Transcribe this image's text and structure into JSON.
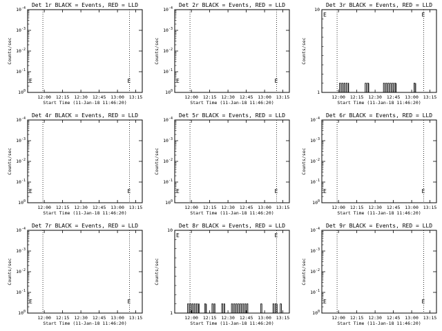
{
  "x_ticks": [
    "12:00",
    "12:15",
    "12:30",
    "12:45",
    "13:00",
    "13:15"
  ],
  "x_label": "Start Time (11-Jan-18 11:46:20)",
  "y_label": "Counts/sec",
  "log_ticks": [
    {
      "base": "10",
      "exp": "0"
    },
    {
      "base": "10",
      "exp": "-1"
    },
    {
      "base": "10",
      "exp": "-2"
    },
    {
      "base": "10",
      "exp": "-3"
    },
    {
      "base": "10",
      "exp": "-4"
    }
  ],
  "lin_ticks": [
    "10",
    "1"
  ],
  "marker_letter": "E",
  "chart_data": [
    {
      "type": "line",
      "title": "Det 1r BLACK = Events, RED = LLD",
      "ylabel": "Counts/sec",
      "xlabel": "Start Time (11-Jan-18 11:46:20)",
      "y_scale": "log",
      "ylim": [
        1.0,
        0.0001
      ],
      "series": [
        {
          "name": "Events",
          "color": "#000000",
          "points": []
        },
        {
          "name": "LLD",
          "color": "#ff0000",
          "points": []
        }
      ],
      "dotted_lines_min": [
        12.5,
        83.5
      ]
    },
    {
      "type": "line",
      "title": "Det 2r BLACK = Events, RED = LLD",
      "ylabel": "Counts/sec",
      "xlabel": "Start Time (11-Jan-18 11:46:20)",
      "y_scale": "log",
      "ylim": [
        1.0,
        0.0001
      ],
      "series": [
        {
          "name": "Events",
          "color": "#000000",
          "points": []
        },
        {
          "name": "LLD",
          "color": "#ff0000",
          "points": []
        }
      ],
      "dotted_lines_min": [
        12.5,
        83.5
      ]
    },
    {
      "type": "line",
      "title": "Det 3r BLACK = Events, RED = LLD",
      "ylabel": "Counts/sec",
      "xlabel": "Start Time (11-Jan-18 11:46:20)",
      "y_scale": "linear",
      "ylim": [
        1,
        10
      ],
      "series": [
        {
          "name": "Events",
          "color": "#000000",
          "bursts_min": [
            [
              14.5,
              22.0
            ],
            [
              35.5,
              38.5
            ],
            [
              50.5,
              61.0
            ],
            [
              75.5,
              77.0
            ]
          ],
          "value": 2
        },
        {
          "name": "LLD",
          "color": "#ff0000",
          "points": []
        }
      ],
      "dotted_lines_min": [
        12.5,
        83.5
      ]
    },
    {
      "type": "line",
      "title": "Det 4r BLACK = Events, RED = LLD",
      "ylabel": "Counts/sec",
      "xlabel": "Start Time (11-Jan-18 11:46:20)",
      "y_scale": "log",
      "ylim": [
        1.0,
        0.0001
      ],
      "series": [
        {
          "name": "Events",
          "color": "#000000",
          "points": []
        },
        {
          "name": "LLD",
          "color": "#ff0000",
          "points": []
        }
      ],
      "dotted_lines_min": [
        12.5,
        83.5
      ]
    },
    {
      "type": "line",
      "title": "Det 5r BLACK = Events, RED = LLD",
      "ylabel": "Counts/sec",
      "xlabel": "Start Time (11-Jan-18 11:46:20)",
      "y_scale": "log",
      "ylim": [
        1.0,
        0.0001
      ],
      "series": [
        {
          "name": "Events",
          "color": "#000000",
          "points": []
        },
        {
          "name": "LLD",
          "color": "#ff0000",
          "points": []
        }
      ],
      "dotted_lines_min": [
        12.5,
        83.5
      ]
    },
    {
      "type": "line",
      "title": "Det 6r BLACK = Events, RED = LLD",
      "ylabel": "Counts/sec",
      "xlabel": "Start Time (11-Jan-18 11:46:20)",
      "y_scale": "log",
      "ylim": [
        1.0,
        0.0001
      ],
      "series": [
        {
          "name": "Events",
          "color": "#000000",
          "points": []
        },
        {
          "name": "LLD",
          "color": "#ff0000",
          "points": []
        }
      ],
      "dotted_lines_min": [
        12.5,
        83.5
      ]
    },
    {
      "type": "line",
      "title": "Det 7r BLACK = Events, RED = LLD",
      "ylabel": "Counts/sec",
      "xlabel": "Start Time (11-Jan-18 11:46:20)",
      "y_scale": "log",
      "ylim": [
        1.0,
        0.0001
      ],
      "series": [
        {
          "name": "Events",
          "color": "#000000",
          "points": []
        },
        {
          "name": "LLD",
          "color": "#ff0000",
          "points": []
        }
      ],
      "dotted_lines_min": [
        12.5,
        83.5
      ]
    },
    {
      "type": "line",
      "title": "Det 8r BLACK = Events, RED = LLD",
      "ylabel": "Counts/sec",
      "xlabel": "Start Time (11-Jan-18 11:46:20)",
      "y_scale": "linear",
      "ylim": [
        1,
        10
      ],
      "series": [
        {
          "name": "Events",
          "color": "#000000",
          "bursts_min": [
            [
              10.5,
              20.0
            ],
            [
              24.5,
              26.0
            ],
            [
              30.5,
              33.0
            ],
            [
              38.5,
              41.0
            ],
            [
              46.5,
              60.0
            ],
            [
              70.5,
              71.5
            ],
            [
              80.5,
              84.0
            ],
            [
              86.5,
              87.5
            ]
          ],
          "value": 2
        },
        {
          "name": "LLD",
          "color": "#ff0000",
          "points": []
        }
      ],
      "dotted_lines_min": [
        12.5,
        83.5
      ]
    },
    {
      "type": "line",
      "title": "Det 9r BLACK = Events, RED = LLD",
      "ylabel": "Counts/sec",
      "xlabel": "Start Time (11-Jan-18 11:46:20)",
      "y_scale": "log",
      "ylim": [
        1.0,
        0.0001
      ],
      "series": [
        {
          "name": "Events",
          "color": "#000000",
          "points": []
        },
        {
          "name": "LLD",
          "color": "#ff0000",
          "points": []
        }
      ],
      "dotted_lines_min": [
        12.5,
        83.5
      ]
    }
  ]
}
